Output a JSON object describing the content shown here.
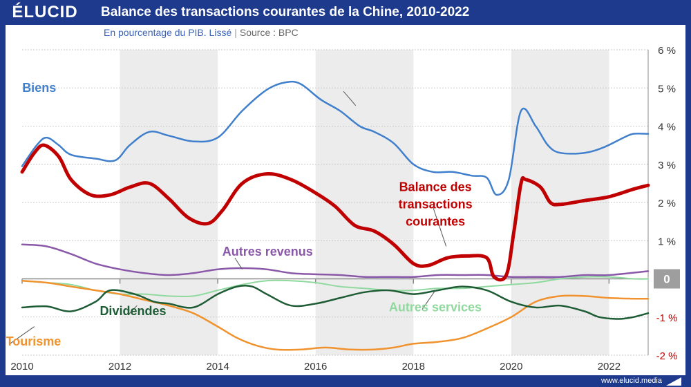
{
  "brand": "ÉLUCID",
  "title": "Balance des transactions courantes de la Chine, 2010-2022",
  "subtitle": "En pourcentage du PIB. Lissé",
  "subtitle_separator": "|",
  "source": "Source : BPC",
  "footer_url": "www.elucid.media",
  "colors": {
    "frame": "#1e3a8c",
    "band": "#ececec",
    "zero_box": "#9e9e9e"
  },
  "chart_data": {
    "type": "line",
    "title": "Balance des transactions courantes de la Chine, 2010-2022",
    "xlim": [
      2010,
      2022.8
    ],
    "ylim": [
      -2,
      6
    ],
    "x_ticks": [
      2010,
      2012,
      2014,
      2016,
      2018,
      2020,
      2022
    ],
    "x_tick_labels": [
      "2010",
      "2012",
      "2014",
      "2016",
      "2018",
      "2020",
      "2022"
    ],
    "y_ticks": [
      -2,
      -1,
      0,
      1,
      2,
      3,
      4,
      5,
      6
    ],
    "y_tick_labels": [
      "-2 %",
      "-1 %",
      "0",
      "1 %",
      "2 %",
      "3 %",
      "4 %",
      "5 %",
      "6 %"
    ],
    "grid": true,
    "series": [
      {
        "name": "Biens",
        "color": "#3f7fcc",
        "width": 2.5,
        "label_x": 2009.0,
        "label_y": 4.9,
        "leader": [
          [
            2016.57,
            4.91
          ],
          [
            2016.82,
            4.54
          ]
        ],
        "points": [
          [
            2010,
            2.95
          ],
          [
            2010.3,
            3.5
          ],
          [
            2010.5,
            3.7
          ],
          [
            2010.75,
            3.5
          ],
          [
            2011,
            3.25
          ],
          [
            2011.5,
            3.15
          ],
          [
            2011.9,
            3.1
          ],
          [
            2012.2,
            3.5
          ],
          [
            2012.6,
            3.85
          ],
          [
            2013,
            3.75
          ],
          [
            2013.5,
            3.6
          ],
          [
            2014,
            3.7
          ],
          [
            2014.5,
            4.4
          ],
          [
            2015,
            4.95
          ],
          [
            2015.4,
            5.15
          ],
          [
            2015.7,
            5.1
          ],
          [
            2016.1,
            4.7
          ],
          [
            2016.5,
            4.4
          ],
          [
            2016.9,
            4.0
          ],
          [
            2017.2,
            3.85
          ],
          [
            2017.6,
            3.55
          ],
          [
            2018,
            3.0
          ],
          [
            2018.4,
            2.8
          ],
          [
            2018.8,
            2.8
          ],
          [
            2019.2,
            2.7
          ],
          [
            2019.5,
            2.65
          ],
          [
            2019.7,
            2.2
          ],
          [
            2019.95,
            2.6
          ],
          [
            2020.2,
            4.4
          ],
          [
            2020.5,
            4.0
          ],
          [
            2020.75,
            3.5
          ],
          [
            2021,
            3.3
          ],
          [
            2021.5,
            3.3
          ],
          [
            2021.9,
            3.45
          ],
          [
            2022.3,
            3.7
          ],
          [
            2022.5,
            3.8
          ],
          [
            2022.8,
            3.8
          ]
        ]
      },
      {
        "name": "Balance des transactions courantes",
        "color": "#c00000",
        "width": 5,
        "label_lines": [
          "Balance des",
          "transactions",
          "courantes"
        ],
        "label_x": 2018.45,
        "label_y": 2.3,
        "leader": [
          [
            2018.4,
            1.88
          ],
          [
            2018.67,
            0.85
          ]
        ],
        "points": [
          [
            2010,
            2.8
          ],
          [
            2010.25,
            3.3
          ],
          [
            2010.45,
            3.5
          ],
          [
            2010.75,
            3.2
          ],
          [
            2011,
            2.6
          ],
          [
            2011.4,
            2.2
          ],
          [
            2011.8,
            2.2
          ],
          [
            2012.2,
            2.4
          ],
          [
            2012.6,
            2.5
          ],
          [
            2013,
            2.1
          ],
          [
            2013.4,
            1.6
          ],
          [
            2013.8,
            1.45
          ],
          [
            2014.1,
            1.8
          ],
          [
            2014.5,
            2.5
          ],
          [
            2015,
            2.75
          ],
          [
            2015.5,
            2.6
          ],
          [
            2016,
            2.25
          ],
          [
            2016.4,
            1.9
          ],
          [
            2016.8,
            1.4
          ],
          [
            2017.2,
            1.25
          ],
          [
            2017.6,
            0.9
          ],
          [
            2018,
            0.4
          ],
          [
            2018.3,
            0.35
          ],
          [
            2018.7,
            0.55
          ],
          [
            2019.1,
            0.6
          ],
          [
            2019.5,
            0.55
          ],
          [
            2019.65,
            0.05
          ],
          [
            2019.9,
            0.1
          ],
          [
            2020.05,
            1.2
          ],
          [
            2020.2,
            2.5
          ],
          [
            2020.3,
            2.6
          ],
          [
            2020.6,
            2.4
          ],
          [
            2020.8,
            2.0
          ],
          [
            2021,
            1.95
          ],
          [
            2021.5,
            2.05
          ],
          [
            2022,
            2.15
          ],
          [
            2022.5,
            2.35
          ],
          [
            2022.8,
            2.45
          ]
        ]
      },
      {
        "name": "Autres revenus",
        "color": "#8a58a8",
        "width": 2.5,
        "label_x": 2014.25,
        "label_y": 0.61,
        "leader": [
          [
            2014.35,
            0.55
          ],
          [
            2014.5,
            0.25
          ]
        ],
        "points": [
          [
            2010,
            0.9
          ],
          [
            2010.5,
            0.85
          ],
          [
            2011,
            0.65
          ],
          [
            2011.5,
            0.4
          ],
          [
            2012,
            0.25
          ],
          [
            2012.5,
            0.15
          ],
          [
            2013,
            0.1
          ],
          [
            2013.5,
            0.15
          ],
          [
            2014,
            0.25
          ],
          [
            2014.5,
            0.28
          ],
          [
            2015,
            0.25
          ],
          [
            2015.5,
            0.15
          ],
          [
            2016,
            0.12
          ],
          [
            2016.5,
            0.1
          ],
          [
            2017,
            0.05
          ],
          [
            2017.5,
            0.05
          ],
          [
            2018,
            0.05
          ],
          [
            2018.5,
            0.1
          ],
          [
            2019,
            0.1
          ],
          [
            2019.5,
            0.1
          ],
          [
            2020,
            0.05
          ],
          [
            2020.5,
            0.05
          ],
          [
            2021,
            0.05
          ],
          [
            2021.5,
            0.1
          ],
          [
            2022,
            0.1
          ],
          [
            2022.8,
            0.2
          ]
        ]
      },
      {
        "name": "Dividendes",
        "color": "#1e5c35",
        "width": 2.5,
        "label_x": 2011.25,
        "label_y": -0.95,
        "leader": [
          [
            2012.18,
            -0.93
          ],
          [
            2012.35,
            -0.7
          ]
        ],
        "points": [
          [
            2010,
            -0.75
          ],
          [
            2010.5,
            -0.72
          ],
          [
            2011,
            -0.85
          ],
          [
            2011.5,
            -0.6
          ],
          [
            2011.8,
            -0.3
          ],
          [
            2012.3,
            -0.4
          ],
          [
            2012.7,
            -0.6
          ],
          [
            2013,
            -0.65
          ],
          [
            2013.5,
            -0.75
          ],
          [
            2014,
            -0.4
          ],
          [
            2014.4,
            -0.2
          ],
          [
            2014.7,
            -0.2
          ],
          [
            2015,
            -0.4
          ],
          [
            2015.5,
            -0.7
          ],
          [
            2016,
            -0.65
          ],
          [
            2016.5,
            -0.5
          ],
          [
            2017,
            -0.35
          ],
          [
            2017.5,
            -0.3
          ],
          [
            2018,
            -0.4
          ],
          [
            2018.5,
            -0.3
          ],
          [
            2019,
            -0.2
          ],
          [
            2019.5,
            -0.3
          ],
          [
            2020,
            -0.6
          ],
          [
            2020.5,
            -0.75
          ],
          [
            2021,
            -0.7
          ],
          [
            2021.5,
            -0.85
          ],
          [
            2021.8,
            -1.0
          ],
          [
            2022.2,
            -1.05
          ],
          [
            2022.5,
            -1.0
          ],
          [
            2022.8,
            -0.9
          ]
        ]
      },
      {
        "name": "Autres services",
        "color": "#8fd99f",
        "width": 2,
        "label_x": 2017.7,
        "label_y": -0.85,
        "leader": [
          [
            2018.18,
            -0.8
          ],
          [
            2018.45,
            -0.3
          ]
        ],
        "points": [
          [
            2010,
            -0.05
          ],
          [
            2010.5,
            -0.1
          ],
          [
            2011,
            -0.15
          ],
          [
            2011.5,
            -0.3
          ],
          [
            2012,
            -0.4
          ],
          [
            2012.5,
            -0.4
          ],
          [
            2013,
            -0.45
          ],
          [
            2013.5,
            -0.45
          ],
          [
            2014,
            -0.3
          ],
          [
            2014.5,
            -0.15
          ],
          [
            2015,
            -0.05
          ],
          [
            2015.5,
            -0.05
          ],
          [
            2016,
            -0.1
          ],
          [
            2016.5,
            -0.2
          ],
          [
            2017,
            -0.25
          ],
          [
            2017.5,
            -0.3
          ],
          [
            2018,
            -0.3
          ],
          [
            2018.5,
            -0.25
          ],
          [
            2019,
            -0.25
          ],
          [
            2019.5,
            -0.2
          ],
          [
            2020,
            -0.15
          ],
          [
            2020.5,
            -0.1
          ],
          [
            2021,
            0.0
          ],
          [
            2021.5,
            0.05
          ],
          [
            2022,
            0.05
          ],
          [
            2022.5,
            0.0
          ],
          [
            2022.8,
            0.0
          ]
        ]
      },
      {
        "name": "Tourisme",
        "color": "#f0922e",
        "width": 2.5,
        "label_x": 2009.1,
        "label_y": -1.75,
        "leader": [
          [
            2009.75,
            -1.7
          ],
          [
            2010.25,
            -1.25
          ]
        ],
        "points": [
          [
            2010,
            -0.05
          ],
          [
            2010.5,
            -0.1
          ],
          [
            2011,
            -0.2
          ],
          [
            2011.5,
            -0.3
          ],
          [
            2012,
            -0.4
          ],
          [
            2012.5,
            -0.55
          ],
          [
            2013,
            -0.7
          ],
          [
            2013.5,
            -0.9
          ],
          [
            2014,
            -1.25
          ],
          [
            2014.4,
            -1.55
          ],
          [
            2014.8,
            -1.75
          ],
          [
            2015.2,
            -1.85
          ],
          [
            2015.7,
            -1.85
          ],
          [
            2016.2,
            -1.8
          ],
          [
            2016.7,
            -1.85
          ],
          [
            2017.2,
            -1.85
          ],
          [
            2017.6,
            -1.8
          ],
          [
            2018,
            -1.7
          ],
          [
            2018.5,
            -1.65
          ],
          [
            2019,
            -1.55
          ],
          [
            2019.5,
            -1.3
          ],
          [
            2020,
            -1.0
          ],
          [
            2020.5,
            -0.6
          ],
          [
            2021,
            -0.45
          ],
          [
            2021.5,
            -0.45
          ],
          [
            2022,
            -0.5
          ],
          [
            2022.5,
            -0.52
          ],
          [
            2022.8,
            -0.52
          ]
        ]
      }
    ]
  }
}
